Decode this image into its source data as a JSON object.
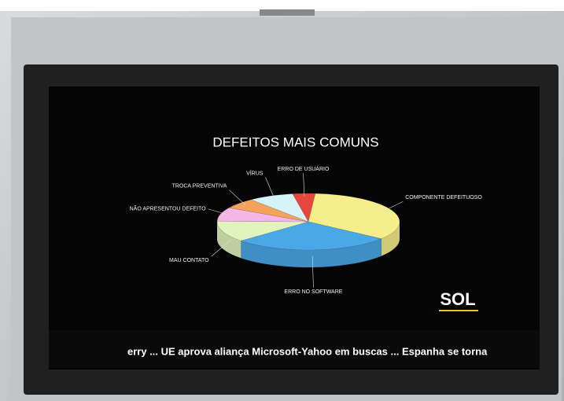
{
  "chart_data": {
    "type": "pie",
    "title": "DEFEITOS MAIS COMUNS",
    "categories": [
      "ERRO DE USUÁRIO",
      "COMPONENTE DEFEITUOSO",
      "ERRO NO SOFTWARE",
      "MAU CONTATO",
      "NÃO APRESENTOU DEFEITO",
      "TROCA PREVENTIVA",
      "VÍRUS"
    ],
    "values": [
      4,
      34,
      28,
      12,
      8,
      6,
      8
    ],
    "colors": [
      "#e8453c",
      "#f5ee8a",
      "#4aa8e6",
      "#e2f4be",
      "#f4b6e6",
      "#f4a35c",
      "#d6f3f7"
    ]
  },
  "logo": "SOL",
  "ticker": "erry  ...  UE aprova aliança Microsoft-Yahoo em buscas  ...  Espanha se torna"
}
